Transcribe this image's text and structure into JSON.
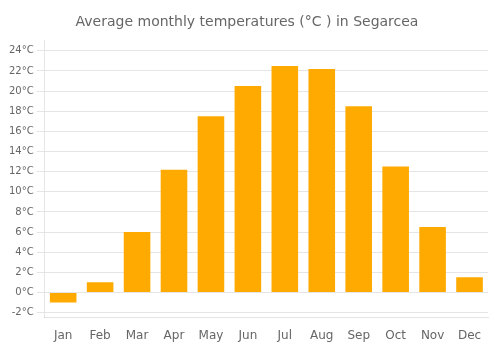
{
  "chart_data": {
    "type": "bar",
    "title": "Average monthly temperatures (°C ) in Segarcea",
    "categories": [
      "Jan",
      "Feb",
      "Mar",
      "Apr",
      "May",
      "Jun",
      "Jul",
      "Aug",
      "Sep",
      "Oct",
      "Nov",
      "Dec"
    ],
    "values": [
      -1.0,
      1.0,
      6.0,
      12.2,
      17.5,
      20.5,
      22.5,
      22.2,
      18.5,
      12.5,
      6.5,
      1.5
    ],
    "color": "#FFAA00",
    "ylim": [
      -2.5,
      25
    ],
    "yticks": [
      {
        "value": -2,
        "label": "-2°C"
      },
      {
        "value": 0,
        "label": "0°C"
      },
      {
        "value": 2,
        "label": "2°C"
      },
      {
        "value": 4,
        "label": "4°C"
      },
      {
        "value": 6,
        "label": "6°C"
      },
      {
        "value": 8,
        "label": "8°C"
      },
      {
        "value": 10,
        "label": "10°C"
      },
      {
        "value": 12,
        "label": "12°C"
      },
      {
        "value": 14,
        "label": "14°C"
      },
      {
        "value": 16,
        "label": "16°C"
      },
      {
        "value": 18,
        "label": "18°C"
      },
      {
        "value": 20,
        "label": "20°C"
      },
      {
        "value": 22,
        "label": "22°C"
      },
      {
        "value": 24,
        "label": "24°C"
      }
    ],
    "grid": true
  }
}
